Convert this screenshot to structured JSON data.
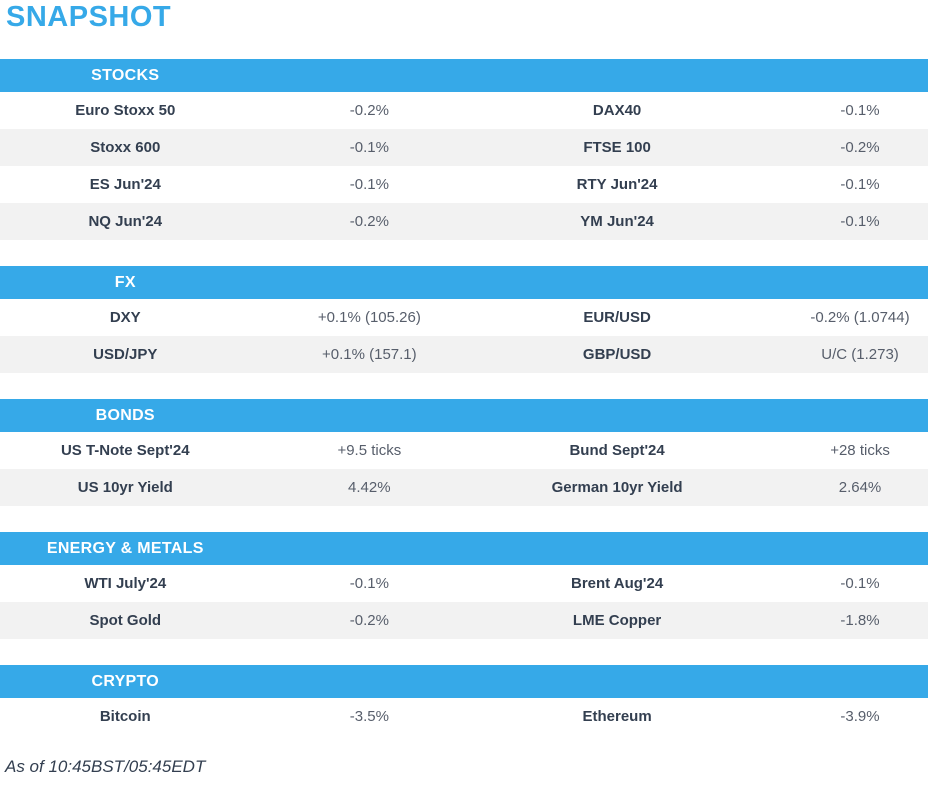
{
  "page": {
    "title": "SNAPSHOT",
    "footer": "As of 10:45BST/05:45EDT"
  },
  "colors": {
    "accent_blue": "#36a9e8",
    "header_text": "#ffffff",
    "label_text": "#333f50",
    "value_text": "#575e6b",
    "row_alt_bg": "#f2f2f2",
    "page_bg": "#ffffff"
  },
  "tables": [
    {
      "section": "STOCKS",
      "rows": [
        {
          "label1": "Euro Stoxx 50",
          "value1": "-0.2%",
          "label2": "DAX40",
          "value2": "-0.1%"
        },
        {
          "label1": "Stoxx 600",
          "value1": "-0.1%",
          "label2": "FTSE 100",
          "value2": "-0.2%"
        },
        {
          "label1": "ES Jun'24",
          "value1": "-0.1%",
          "label2": "RTY Jun'24",
          "value2": "-0.1%"
        },
        {
          "label1": "NQ Jun'24",
          "value1": "-0.2%",
          "label2": "YM Jun'24",
          "value2": "-0.1%"
        }
      ]
    },
    {
      "section": "FX",
      "rows": [
        {
          "label1": "DXY",
          "value1": "+0.1% (105.26)",
          "label2": "EUR/USD",
          "value2": "-0.2% (1.0744)"
        },
        {
          "label1": "USD/JPY",
          "value1": "+0.1% (157.1)",
          "label2": "GBP/USD",
          "value2": "U/C (1.273)"
        }
      ]
    },
    {
      "section": "BONDS",
      "rows": [
        {
          "label1": "US T-Note Sept'24",
          "value1": "+9.5 ticks",
          "label2": "Bund Sept'24",
          "value2": "+28 ticks"
        },
        {
          "label1": "US 10yr Yield",
          "value1": "4.42%",
          "label2": "German 10yr Yield",
          "value2": "2.64%"
        }
      ]
    },
    {
      "section": "ENERGY & METALS",
      "rows": [
        {
          "label1": "WTI July'24",
          "value1": "-0.1%",
          "label2": "Brent Aug'24",
          "value2": "-0.1%"
        },
        {
          "label1": "Spot Gold",
          "value1": "-0.2%",
          "label2": "LME Copper",
          "value2": "-1.8%"
        }
      ]
    },
    {
      "section": "CRYPTO",
      "rows": [
        {
          "label1": "Bitcoin",
          "value1": "-3.5%",
          "label2": "Ethereum",
          "value2": "-3.9%"
        }
      ]
    }
  ]
}
